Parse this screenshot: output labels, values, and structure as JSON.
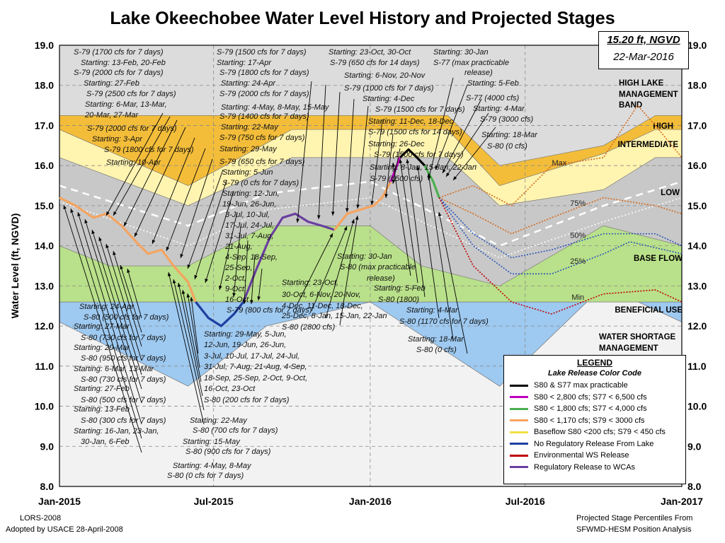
{
  "title": "Lake Okeechobee Water Level History and Projected Stages",
  "stage_box": {
    "line1": "15.20 ft, NGVD",
    "line2": "22-Mar-2016"
  },
  "footer": {
    "left1": "LORS-2008",
    "left2": "Adopted by USACE 28-April-2008",
    "right1": "Projected Stage Percentiles From",
    "right2": "SFWMD-HESM Position Analysis"
  },
  "legend": {
    "title": "LEGEND",
    "subtitle": "Lake Release Color Code",
    "items": [
      {
        "label": "S80 & S77 max practicable",
        "color": "#000000"
      },
      {
        "label": "S80 < 2,800 cfs; S77 < 6,500 cfs",
        "color": "#c000c0"
      },
      {
        "label": "S80 < 1,800 cfs; S77 < 4,000 cfs",
        "color": "#4caf50"
      },
      {
        "label": "S80 < 1,170 cfs; S79 < 3000 cfs",
        "color": "#f4a460"
      },
      {
        "label": "Baseflow S80 <200 cfs; S79 < 450 cfs",
        "color": "#f0e040"
      },
      {
        "label": "No Regulatory Release From Lake",
        "color": "#1f3f9f"
      },
      {
        "label": "Environmental WS Release",
        "color": "#c00000"
      },
      {
        "label": "Regulatory Release to WCAs",
        "color": "#6a3fa0"
      }
    ]
  },
  "chart_data": {
    "type": "line",
    "ylabel": "Water Level (ft, NGVD)",
    "ylim": [
      8.0,
      19.0
    ],
    "y_ticks": [
      "8.0",
      "9.0",
      "10.0",
      "11.0",
      "12.0",
      "13.0",
      "14.0",
      "15.0",
      "16.0",
      "17.0",
      "18.0",
      "19.0"
    ],
    "x_ticks": [
      {
        "label": "Jan-2015",
        "x": "2015-01-01"
      },
      {
        "label": "Jul-2015",
        "x": "2015-07-01"
      },
      {
        "label": "Jan-2016",
        "x": "2016-01-01"
      },
      {
        "label": "Jul-2016",
        "x": "2016-07-01"
      },
      {
        "label": "Jan-2017",
        "x": "2017-01-01"
      }
    ],
    "bands": {
      "high_top": [
        [
          "2015-01-01",
          17.25
        ],
        [
          "2015-06-01",
          17.25
        ],
        [
          "2015-10-01",
          17.25
        ],
        [
          "2016-04-01",
          17.25
        ],
        [
          "2016-06-01",
          16.0
        ],
        [
          "2016-10-01",
          16.5
        ],
        [
          "2016-12-01",
          17.25
        ],
        [
          "2017-01-01",
          17.25
        ]
      ],
      "high_bottom": [
        [
          "2015-01-01",
          16.9
        ],
        [
          "2015-06-01",
          15.5
        ],
        [
          "2015-10-01",
          16.9
        ],
        [
          "2016-04-01",
          16.9
        ],
        [
          "2016-06-01",
          15.5
        ],
        [
          "2016-10-01",
          16.3
        ],
        [
          "2016-12-01",
          16.9
        ],
        [
          "2017-01-01",
          16.9
        ]
      ],
      "intermediate_bottom": [
        [
          "2015-01-01",
          16.2
        ],
        [
          "2015-06-01",
          15.0
        ],
        [
          "2015-10-01",
          16.2
        ],
        [
          "2016-04-01",
          16.2
        ],
        [
          "2016-06-01",
          15.0
        ],
        [
          "2016-10-01",
          15.4
        ],
        [
          "2016-12-01",
          16.2
        ],
        [
          "2017-01-01",
          16.2
        ]
      ],
      "low_bottom": [
        [
          "2015-01-01",
          14.0
        ],
        [
          "2015-03-01",
          13.5
        ],
        [
          "2015-06-01",
          13.5
        ],
        [
          "2015-09-01",
          14.5
        ],
        [
          "2016-01-01",
          14.5
        ],
        [
          "2016-03-01",
          13.5
        ],
        [
          "2016-06-01",
          13.0
        ],
        [
          "2016-10-01",
          14.5
        ],
        [
          "2017-01-01",
          14.0
        ]
      ],
      "baseflow_bottom": [
        [
          "2015-01-01",
          12.6
        ],
        [
          "2016-10-01",
          12.6
        ],
        [
          "2017-01-01",
          12.6
        ]
      ],
      "beneficial_bottom": [
        [
          "2015-01-01",
          12.1
        ],
        [
          "2015-06-01",
          10.5
        ],
        [
          "2015-09-01",
          12.0
        ],
        [
          "2016-01-01",
          12.6
        ],
        [
          "2016-06-01",
          10.5
        ],
        [
          "2016-10-01",
          13.0
        ],
        [
          "2017-01-01",
          12.1
        ]
      ]
    },
    "band_labels": [
      "HIGH LAKE MANAGEMENT BAND",
      "HIGH",
      "INTERMEDIATE",
      "LOW",
      "BASE FLOW",
      "BENEFICIAL USE",
      "WATER SHORTAGE MANAGEMENT"
    ],
    "series": [
      {
        "type": "observed",
        "segments": [
          {
            "color": "#f4a460",
            "points": [
              [
                "2015-01-01",
                15.2
              ],
              [
                "2015-01-20",
                15.0
              ],
              [
                "2015-02-10",
                14.7
              ],
              [
                "2015-02-25",
                14.8
              ],
              [
                "2015-03-15",
                14.5
              ],
              [
                "2015-04-01",
                14.1
              ],
              [
                "2015-04-15",
                13.8
              ],
              [
                "2015-05-01",
                13.9
              ],
              [
                "2015-05-15",
                13.5
              ],
              [
                "2015-06-01",
                13.1
              ],
              [
                "2015-06-10",
                12.6
              ]
            ]
          },
          {
            "color": "#1f3f9f",
            "points": [
              [
                "2015-06-10",
                12.6
              ],
              [
                "2015-06-25",
                12.2
              ],
              [
                "2015-07-10",
                12.0
              ],
              [
                "2015-07-25",
                12.3
              ],
              [
                "2015-08-05",
                12.6
              ]
            ]
          },
          {
            "color": "#6a3fa0",
            "points": [
              [
                "2015-08-05",
                12.6
              ],
              [
                "2015-08-20",
                13.4
              ],
              [
                "2015-09-05",
                14.2
              ],
              [
                "2015-09-20",
                14.7
              ],
              [
                "2015-10-05",
                14.8
              ],
              [
                "2015-10-20",
                14.6
              ],
              [
                "2015-11-05",
                14.5
              ],
              [
                "2015-11-20",
                14.4
              ]
            ]
          },
          {
            "color": "#f4a460",
            "points": [
              [
                "2015-11-20",
                14.4
              ],
              [
                "2015-12-05",
                14.8
              ],
              [
                "2015-12-20",
                14.9
              ],
              [
                "2016-01-05",
                15.0
              ],
              [
                "2016-01-15",
                15.2
              ],
              [
                "2016-01-25",
                15.6
              ]
            ]
          },
          {
            "color": "#c000c0",
            "points": [
              [
                "2016-01-25",
                15.6
              ],
              [
                "2016-02-05",
                16.2
              ]
            ]
          },
          {
            "color": "#000000",
            "points": [
              [
                "2016-02-05",
                16.2
              ],
              [
                "2016-02-15",
                16.4
              ],
              [
                "2016-02-25",
                16.2
              ],
              [
                "2016-03-05",
                16.0
              ]
            ]
          },
          {
            "color": "#4caf50",
            "points": [
              [
                "2016-03-05",
                16.0
              ],
              [
                "2016-03-15",
                15.6
              ],
              [
                "2016-03-22",
                15.2
              ]
            ]
          }
        ]
      },
      {
        "name": "Max",
        "color": "#d46a1c",
        "dash": "dot",
        "points": [
          [
            "2016-03-22",
            15.2
          ],
          [
            "2016-05-01",
            15.5
          ],
          [
            "2016-06-15",
            15.0
          ],
          [
            "2016-08-01",
            16.0
          ],
          [
            "2016-10-01",
            16.2
          ],
          [
            "2016-11-10",
            17.5
          ],
          [
            "2016-12-01",
            17.0
          ],
          [
            "2017-01-01",
            16.2
          ]
        ]
      },
      {
        "name": "75%",
        "color": "#d46a1c",
        "dash": "dot",
        "points": [
          [
            "2016-03-22",
            15.2
          ],
          [
            "2016-05-01",
            14.8
          ],
          [
            "2016-06-15",
            14.3
          ],
          [
            "2016-08-01",
            14.7
          ],
          [
            "2016-10-01",
            15.2
          ],
          [
            "2016-12-01",
            15.0
          ],
          [
            "2017-01-01",
            14.8
          ]
        ]
      },
      {
        "name": "50%",
        "color": "#2b57b8",
        "dash": "dot",
        "points": [
          [
            "2016-03-22",
            15.2
          ],
          [
            "2016-05-01",
            14.3
          ],
          [
            "2016-06-15",
            13.7
          ],
          [
            "2016-08-01",
            13.9
          ],
          [
            "2016-10-01",
            14.3
          ],
          [
            "2016-12-01",
            14.3
          ],
          [
            "2017-01-01",
            14.0
          ]
        ]
      },
      {
        "name": "25%",
        "color": "#2b57b8",
        "dash": "dot",
        "points": [
          [
            "2016-03-22",
            15.2
          ],
          [
            "2016-05-01",
            14.0
          ],
          [
            "2016-06-15",
            13.3
          ],
          [
            "2016-08-01",
            13.3
          ],
          [
            "2016-10-01",
            13.8
          ],
          [
            "2016-11-01",
            14.1
          ],
          [
            "2017-01-01",
            13.8
          ]
        ]
      },
      {
        "name": "Min",
        "color": "#c00000",
        "dash": "dot",
        "points": [
          [
            "2016-03-22",
            15.2
          ],
          [
            "2016-05-01",
            13.5
          ],
          [
            "2016-06-15",
            12.6
          ],
          [
            "2016-08-01",
            12.3
          ],
          [
            "2016-10-01",
            12.8
          ],
          [
            "2016-12-01",
            12.9
          ],
          [
            "2017-01-01",
            12.6
          ]
        ]
      }
    ],
    "annotations": [
      "S-79 (1700 cfs for 7 days)",
      "Starting: 13-Feb, 20-Feb",
      "S-79 (2000 cfs for 7 days)",
      "Starting: 27-Feb",
      "S-79 (2500 cfs for 7 days)",
      "Starting: 6-Mar, 13-Mar,",
      "20-Mar, 27-Mar",
      "S-79 (2000 cfs for 7 days)",
      "Starting: 3-Apr",
      "S-79 (1800 cfs for 7 days)",
      "Starting: 10-Apr",
      "S-79 (1500 cfs for 7 days)",
      "Starting: 17-Apr",
      "S-79 (1800 cfs for 7 days)",
      "Starting: 24-Apr",
      "S-79 (2000 cfs for 7 days)",
      "Starting: 4-May, 8-May, 15-May",
      "S-79 (1400 cfs for 7 days)",
      "Starting: 22-May",
      "S-79 (750 cfs for 7 days)",
      "Starting: 29-May",
      "S-79 (650 cfs for 7 days)",
      "Starting: 5-Jun",
      "S-79 (0 cfs for 7 days)",
      "Starting: 12-Jun,",
      "19-Jun, 26-Jun,",
      "3-Jul, 10-Jul,",
      "17-Jul, 24-Jul,",
      "31-Jul, 7-Aug,",
      "21-Aug,",
      "4-Sep, 18-Sep,",
      "25-Sep,",
      "2-Oct,",
      "9-Oct,",
      "16-Oct",
      "S-79 (800 cfs for 7 days)",
      "Starting: 23-Oct, 30-Oct",
      "S-79 (650 cfs for 14 days)",
      "Starting: 6-Nov, 20-Nov",
      "S-79 (1000 cfs for 7 days)",
      "Starting: 4-Dec",
      "S-79 (1500 cfs for 7 days)",
      "Starting: 11-Dec, 18-Dec",
      "S-79 (1500 cfs for 14 days)",
      "Starting: 26-Dec",
      "S-79 (1500 cfs for 7 days)",
      "Starting: 8-Jan, 15-Jan, 22-Jan",
      "S-79 (6500 cfs)",
      "Starting: 30-Jan",
      "S-77 (max practicable",
      "release)",
      "Starting: 5-Feb",
      "S-77 (4000 cfs)",
      "Starting: 4-Mar",
      "S-79 (3000 cfs)",
      "Starting: 18-Mar",
      "S-80 (0 cfs)",
      "Starting: 23-Oct,",
      "30-Oct, 6-Nov, 20-Nov,",
      "4-Dec, 11-Dec, 18-Dec,",
      "25-Dec, 8-Jan, 15-Jan, 22-Jan",
      "S-80 (2800 cfs)",
      "Starting: 30-Jan",
      "S-80 (max practicable",
      "release)",
      "Starting: 5-Feb",
      "S-80 (1800)",
      "Starting: 4-Mar",
      "S-80 (1170 cfs for 7 days)",
      "Starting: 18-Mar",
      "S-80 (0 cfs)",
      "Starting: 29-May, 5-Jun,",
      "12-Jun, 19-Jun, 26-Jun,",
      "3-Jul, 10-Jul, 17-Jul, 24-Jul,",
      "31-Jul, 7-Aug, 21-Aug, 4-Sep,",
      "18-Sep, 25-Sep, 2-Oct, 9-Oct,",
      "16-Oct, 23-Oct",
      "S-80 (200 cfs for 7 days)",
      "Starting: 22-May",
      "S-80 (700 cfs for 7 days)",
      "Starting: 15-May",
      "S-80 (900 cfs for 7 days)",
      "Starting: 4-May, 8-May",
      "S-80 (0 cfs for 7 days)",
      "Starting: 24-Apr",
      "S-80 (500 cfs for 7 days)",
      "Starting: 27-Mar",
      "S-80 (730 cfs for 7 days)",
      "Starting: 20-Mar",
      "S-80 (950 cfs for 7 days)",
      "Starting: 6-Mar, 13-Mar",
      "S-80 (730 cfs for 7 days)",
      "Starting: 27-Feb",
      "S-80 (500 cfs for 7 days)",
      "Starting: 13-Feb",
      "S-80 (300 cfs for 7 days)",
      "Starting: 16-Jan, 23-Jan,",
      "30-Jan, 6-Feb"
    ]
  }
}
